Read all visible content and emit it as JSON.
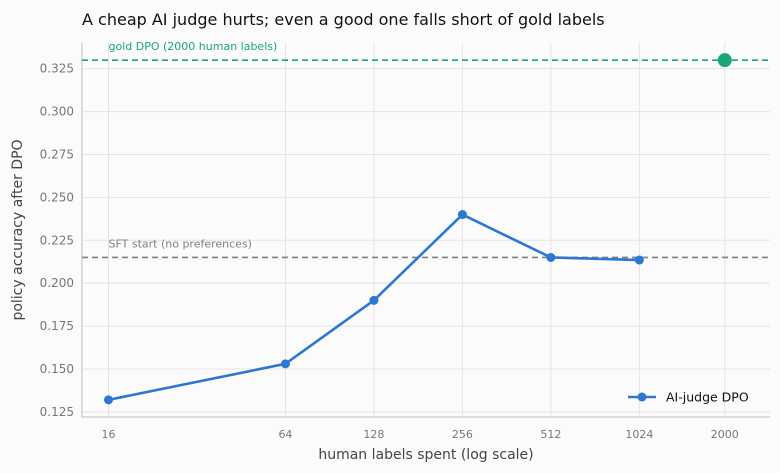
{
  "chart_data": {
    "type": "line",
    "title": "A cheap AI judge hurts; even a good one falls short of gold labels",
    "xlabel": "human labels spent (log scale)",
    "ylabel": "policy accuracy after DPO",
    "xscale": "log",
    "xticks": [
      16,
      64,
      128,
      256,
      512,
      1024,
      2000
    ],
    "xlim": [
      13,
      2850
    ],
    "ylim": [
      0.122,
      0.34
    ],
    "yticks": [
      0.125,
      0.15,
      0.175,
      0.2,
      0.225,
      0.25,
      0.275,
      0.3,
      0.325
    ],
    "grid": true,
    "legend": "bottom-right",
    "series": [
      {
        "name": "AI-judge DPO",
        "color": "#2c77d1",
        "x": [
          16,
          64,
          128,
          256,
          512,
          1024
        ],
        "y": [
          0.132,
          0.153,
          0.19,
          0.24,
          0.215,
          0.2135
        ]
      }
    ],
    "reference_lines": [
      {
        "label": "gold DPO (2000 human labels)",
        "y": 0.33,
        "color": "#1aa57a"
      },
      {
        "label": "SFT start (no preferences)",
        "y": 0.215,
        "color": "#808080"
      }
    ],
    "gold_point": {
      "x": 2000,
      "y": 0.33,
      "color": "#1aa57a"
    }
  }
}
